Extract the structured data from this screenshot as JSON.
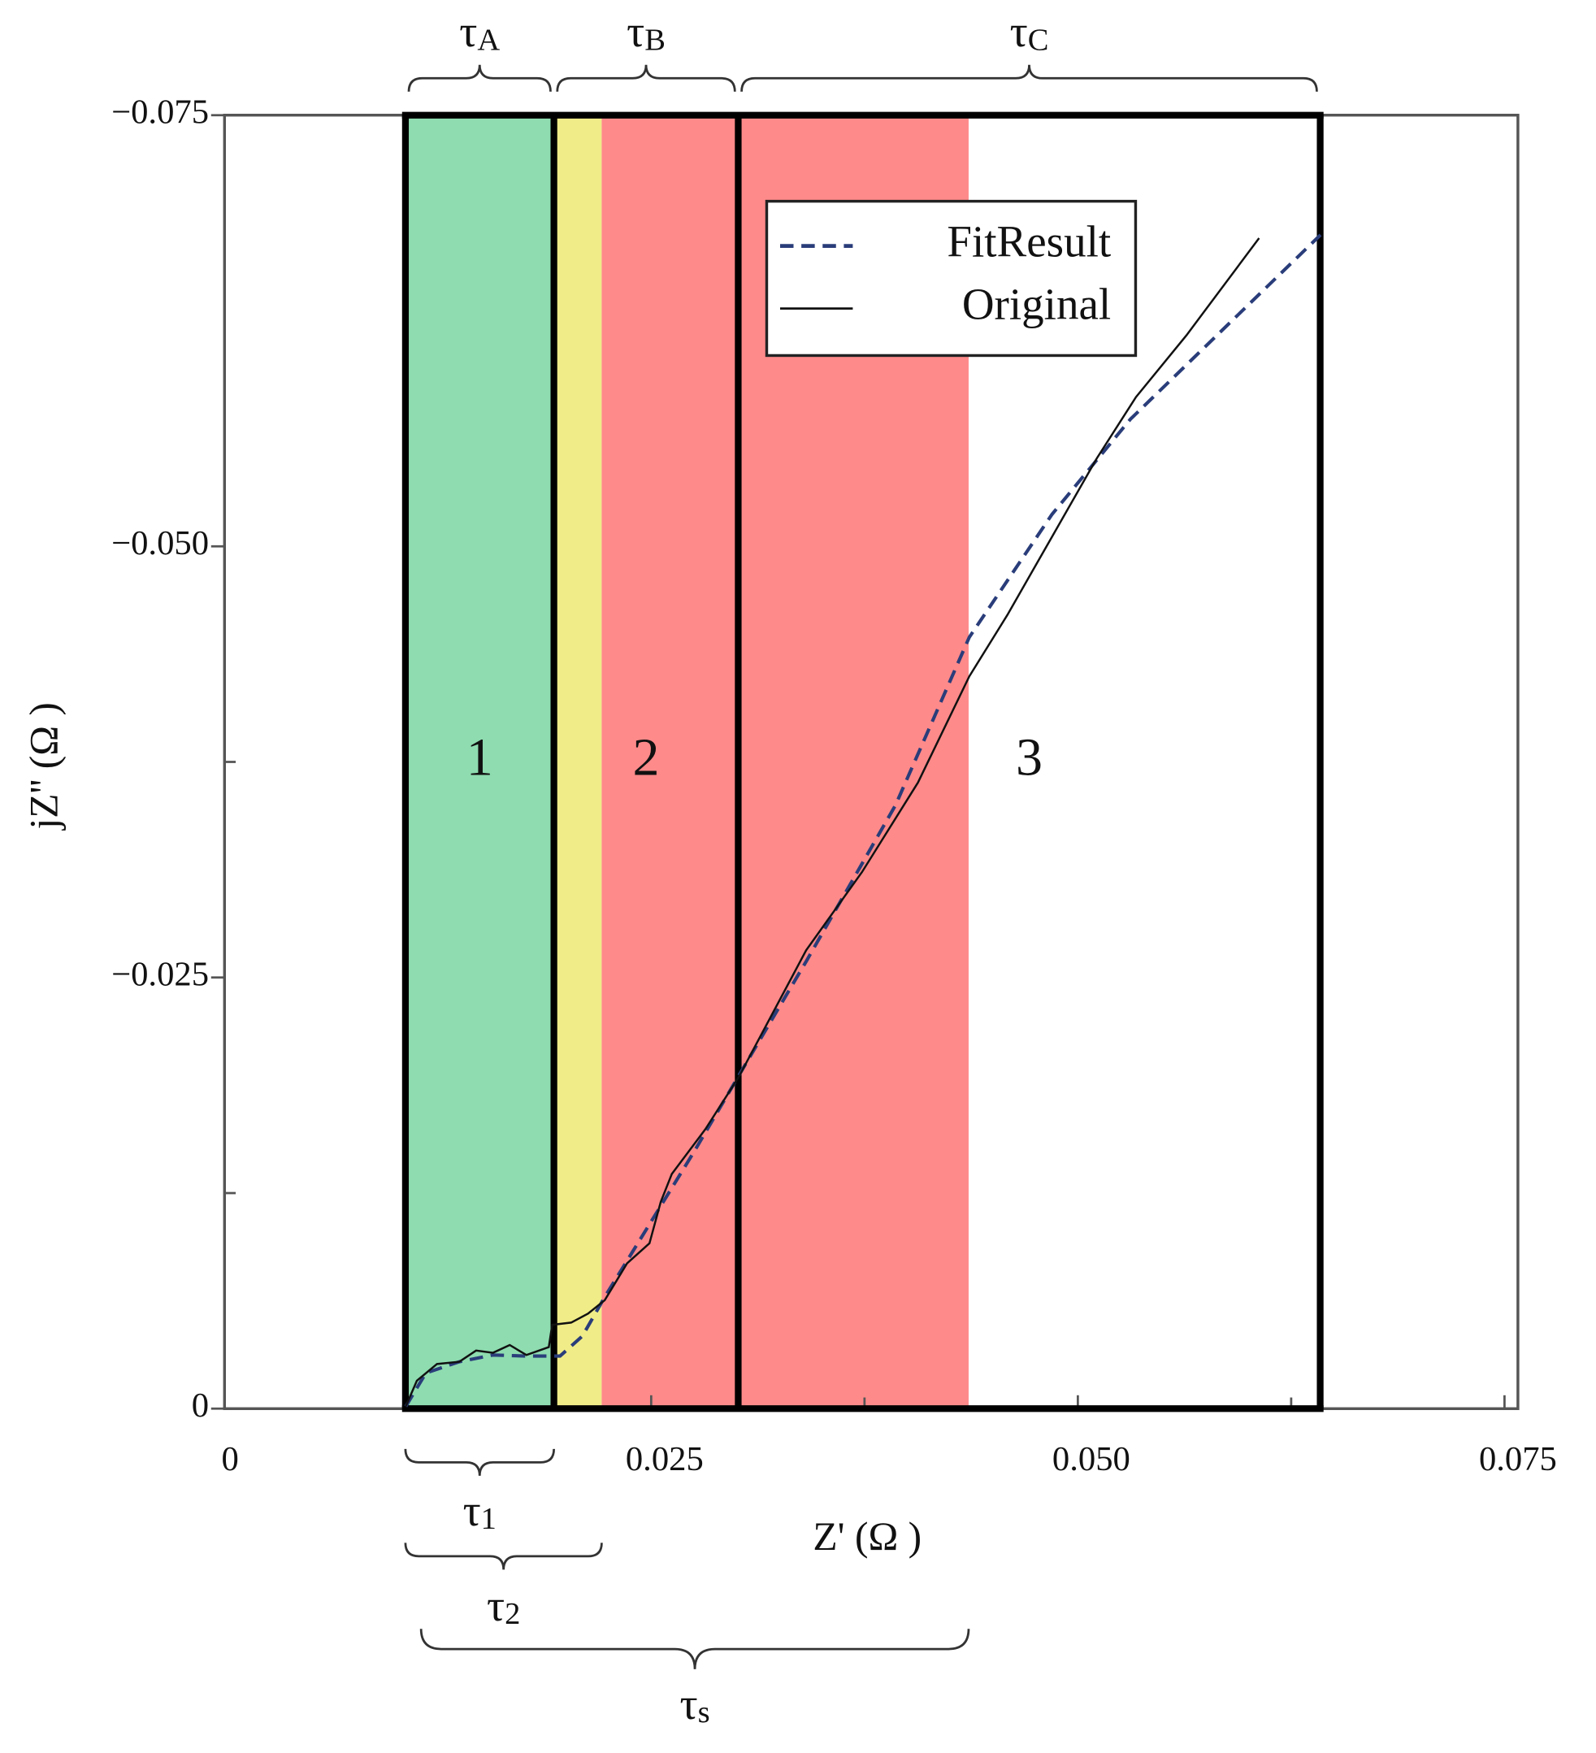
{
  "chart_data": {
    "type": "line",
    "x_label": "Z' (Ω )",
    "y_label": "jZ'' (Ω )",
    "xlim": [
      0,
      0.075
    ],
    "ylim": [
      0,
      -0.075
    ],
    "xticks": [
      0,
      0.025,
      {
        "value": 0.05,
        "label": "0.050"
      },
      0.075
    ],
    "xminor_ticks": [
      0.0375,
      0.0625
    ],
    "yticks": [
      0,
      {
        "value": -0.025,
        "label": "−0.025"
      },
      {
        "value": -0.05,
        "label": "−0.050"
      },
      {
        "value": -0.075,
        "label": "−0.075"
      }
    ],
    "yminor_ticks": [
      -0.0125,
      -0.0375
    ],
    "shading": [
      {
        "from": 0.0106,
        "to": 0.0193,
        "color": "#8edcb0"
      },
      {
        "from": 0.0193,
        "to": 0.0221,
        "color": "#f0ec88"
      },
      {
        "from": 0.0221,
        "to": 0.0436,
        "color": "#ff8a8a"
      }
    ],
    "boundaries": [
      0.0106,
      0.0193,
      0.0301,
      0.0642
    ],
    "segments": [
      {
        "number": "1",
        "brace": "τ",
        "brace_sub": "A"
      },
      {
        "number": "2",
        "brace": "τ",
        "brace_sub": "B"
      },
      {
        "number": "3",
        "brace": "τ",
        "brace_sub": "C"
      }
    ],
    "lower_braces": [
      {
        "from": 0.0106,
        "to": 0.0193,
        "label": "τ",
        "sub": "1"
      },
      {
        "from": 0.0106,
        "to": 0.0221,
        "label": "τ",
        "sub": "2"
      },
      {
        "from": 0.0106,
        "to": 0.0436,
        "label": "τ",
        "sub": "s"
      }
    ],
    "legend": "top-center",
    "series": [
      {
        "name": "FitResult",
        "color": "#2a3d7a",
        "dashed": true,
        "x": [
          0.01062,
          0.0118,
          0.01376,
          0.01573,
          0.01769,
          0.01966,
          0.02097,
          0.02228,
          0.0249,
          0.02752,
          0.03014,
          0.03408,
          0.03932,
          0.04364,
          0.04849,
          0.05308,
          0.06422
        ],
        "values": [
          -0.00013,
          -0.00207,
          -0.00272,
          -0.00311,
          -0.00305,
          -0.00305,
          -0.00421,
          -0.00648,
          -0.01069,
          -0.01491,
          -0.01932,
          -0.02593,
          -0.035,
          -0.04473,
          -0.05186,
          -0.05737,
          -0.06806
        ]
      },
      {
        "name": "Original",
        "color": "#111111",
        "dashed": false,
        "x": [
          0.01062,
          0.01127,
          0.01245,
          0.01376,
          0.01474,
          0.01573,
          0.01671,
          0.01769,
          0.019,
          0.0192,
          0.02031,
          0.0213,
          0.02228,
          0.02359,
          0.0249,
          0.02556,
          0.02621,
          0.02818,
          0.03014,
          0.03408,
          0.03735,
          0.04063,
          0.04364,
          0.04587,
          0.04849,
          0.05111,
          0.05341,
          0.05636,
          0.06062
        ],
        "values": [
          -0.00013,
          -0.00162,
          -0.00259,
          -0.00272,
          -0.00337,
          -0.00324,
          -0.00369,
          -0.00311,
          -0.00357,
          -0.00486,
          -0.00499,
          -0.00551,
          -0.00629,
          -0.00843,
          -0.00959,
          -0.01199,
          -0.01361,
          -0.01621,
          -0.01925,
          -0.02658,
          -0.03111,
          -0.0363,
          -0.04246,
          -0.04602,
          -0.05056,
          -0.0551,
          -0.05866,
          -0.06223,
          -0.06787
        ]
      }
    ]
  }
}
